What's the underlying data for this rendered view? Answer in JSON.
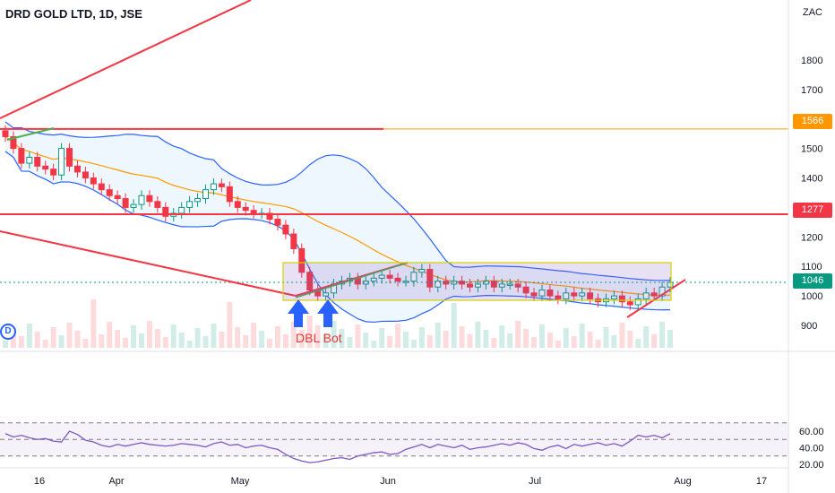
{
  "header": {
    "title": "DRD GOLD LTD, 1D, JSE",
    "currency": "ZAC"
  },
  "indicator_badge": "D",
  "price_labels": [
    {
      "value": "1566",
      "color": "#ff9800"
    },
    {
      "value": "1277",
      "color": "#f23645"
    },
    {
      "value": "1046",
      "color": "#089981"
    }
  ],
  "annotation": "DBL Bot",
  "chart_data": [
    {
      "type": "line",
      "title": "DRD GOLD LTD, 1D, JSE",
      "y_unit": "ZAC",
      "ylim": [
        860,
        1900
      ],
      "y_ticks": [
        900,
        1000,
        1100,
        1200,
        1300,
        1400,
        1500,
        1600,
        1700,
        1800
      ],
      "x_tick_labels": [
        "16",
        "Apr",
        "May",
        "Jun",
        "Jul",
        "Aug",
        "17"
      ],
      "horizontal_levels": [
        1566,
        1277
      ],
      "last_price": 1046,
      "series": [
        {
          "values": [
            1540,
            1500,
            1450,
            1470,
            1440,
            1430,
            1410,
            1500,
            1440,
            1420,
            1400,
            1380,
            1360,
            1340,
            1330,
            1300,
            1310,
            1340,
            1320,
            1300,
            1270,
            1280,
            1300,
            1320,
            1330,
            1360,
            1380,
            1370,
            1320,
            1300,
            1290,
            1280,
            1280,
            1260,
            1240,
            1210,
            1160,
            1080,
            1020,
            1000,
            1010,
            1040,
            1050,
            1060,
            1040,
            1050,
            1060,
            1070,
            1060,
            1050,
            1050,
            1080,
            1090,
            1030,
            1050,
            1040,
            1050,
            1040,
            1030,
            1040,
            1050,
            1030,
            1040,
            1040,
            1030,
            1010,
            1000,
            1020,
            1000,
            990,
            1010,
            1000,
            1010,
            990,
            980,
            990,
            1000,
            980,
            970,
            990,
            1010,
            1000,
            1030,
            1046
          ]
        }
      ]
    },
    {
      "type": "line",
      "title": "",
      "ylim": [
        15,
        72
      ],
      "y_ticks": [
        20,
        40,
        60
      ],
      "y_tick_labels": [
        "20.00",
        "40.00",
        "60.00"
      ],
      "levels": [
        70,
        50,
        30
      ],
      "series": [
        {
          "values": [
            57,
            53,
            55,
            52,
            50,
            51,
            48,
            47,
            60,
            56,
            49,
            47,
            43,
            41,
            44,
            42,
            44,
            46,
            44,
            43,
            42,
            43,
            45,
            44,
            43,
            41,
            45,
            47,
            43,
            44,
            40,
            42,
            43,
            40,
            38,
            32,
            27,
            24,
            22,
            23,
            25,
            27,
            28,
            26,
            30,
            32,
            34,
            35,
            32,
            33,
            38,
            41,
            44,
            40,
            44,
            42,
            40,
            43,
            38,
            40,
            41,
            43,
            45,
            43,
            46,
            44,
            39,
            37,
            41,
            43,
            39,
            44,
            42,
            44,
            46,
            43,
            45,
            42,
            48,
            55,
            53,
            55,
            52,
            57
          ]
        }
      ]
    }
  ]
}
